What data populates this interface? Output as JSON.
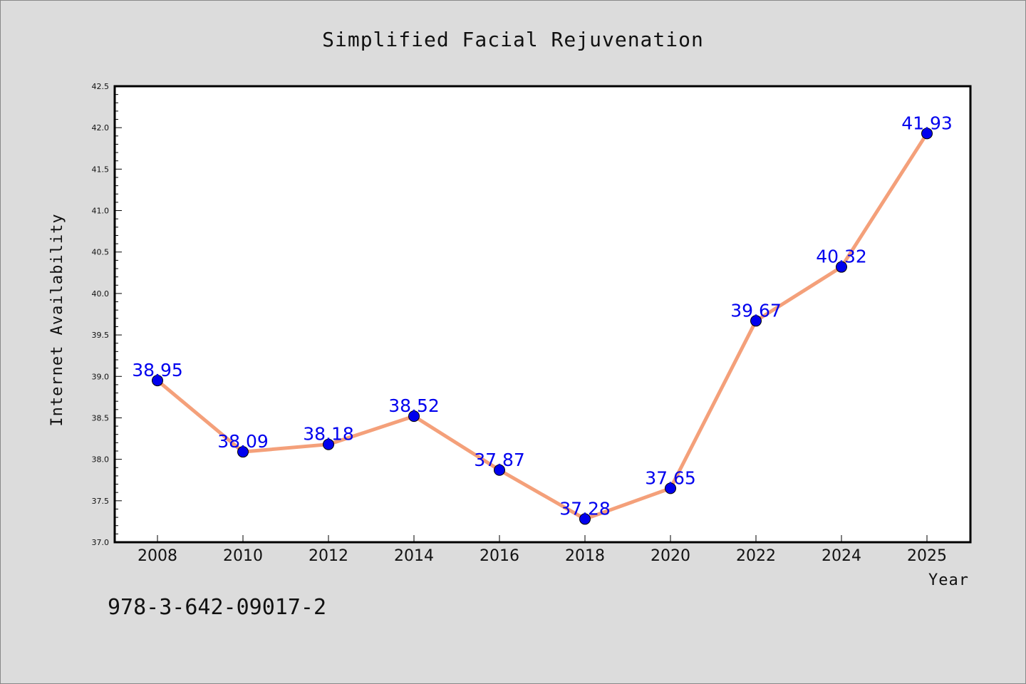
{
  "isbn": "978-3-642-09017-2",
  "colors": {
    "background": "#dcdcdc",
    "plot_background": "#ffffff",
    "line": "#f4a07a",
    "marker": "#0000ee",
    "data_label": "#0000ee"
  },
  "chart_data": {
    "type": "line",
    "title": "Simplified Facial Rejuvenation",
    "xlabel": "Year",
    "ylabel": "Internet Availability",
    "categories": [
      "2008",
      "2010",
      "2012",
      "2014",
      "2016",
      "2018",
      "2020",
      "2022",
      "2024",
      "2025"
    ],
    "values": [
      38.95,
      38.09,
      38.18,
      38.52,
      37.87,
      37.28,
      37.65,
      39.67,
      40.32,
      41.93
    ],
    "data_labels": [
      "38.95",
      "38.09",
      "38.18",
      "38.52",
      "37.87",
      "37.28",
      "37.65",
      "39.67",
      "40.32",
      "41.93"
    ],
    "ylim": [
      37.0,
      42.5
    ],
    "yticks": [
      "37.0",
      "37.5",
      "38.0",
      "38.5",
      "39.0",
      "39.5",
      "40.0",
      "40.5",
      "41.0",
      "41.5",
      "42.0",
      "42.5"
    ],
    "grid": false,
    "legend": "none"
  }
}
